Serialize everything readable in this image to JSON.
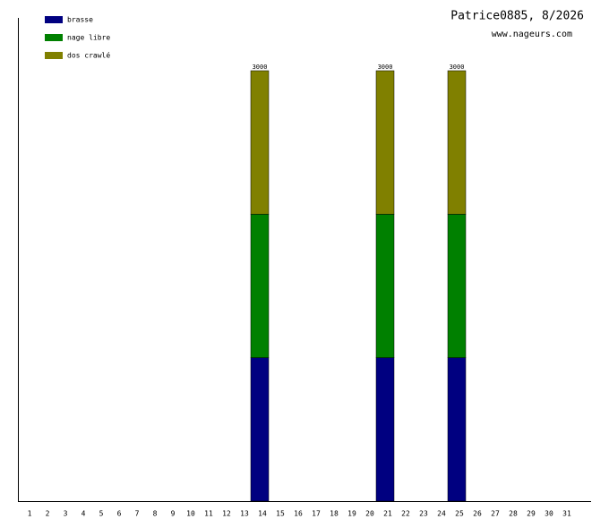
{
  "chart_data": {
    "type": "stacked-bar",
    "title": "Patrice0885, 8/2026",
    "subtitle": "www.nageurs.com",
    "categories": [
      "1",
      "2",
      "3",
      "4",
      "5",
      "6",
      "7",
      "8",
      "9",
      "10",
      "11",
      "12",
      "13",
      "14",
      "15",
      "16",
      "17",
      "18",
      "19",
      "20",
      "21",
      "22",
      "23",
      "24",
      "25",
      "26",
      "27",
      "28",
      "29",
      "30",
      "31"
    ],
    "series": [
      {
        "name": "brasse",
        "color": "#000080",
        "values": [
          null,
          null,
          null,
          null,
          null,
          null,
          null,
          null,
          null,
          null,
          null,
          null,
          null,
          1000,
          null,
          null,
          null,
          null,
          null,
          null,
          1000,
          null,
          null,
          null,
          1000,
          null,
          null,
          null,
          null,
          null,
          null
        ]
      },
      {
        "name": "nage libre",
        "color": "#008000",
        "values": [
          null,
          null,
          null,
          null,
          null,
          null,
          null,
          null,
          null,
          null,
          null,
          null,
          null,
          1000,
          null,
          null,
          null,
          null,
          null,
          null,
          1000,
          null,
          null,
          null,
          1000,
          null,
          null,
          null,
          null,
          null,
          null
        ]
      },
      {
        "name": "dos crawlé",
        "color": "#808000",
        "values": [
          null,
          null,
          null,
          null,
          null,
          null,
          null,
          null,
          null,
          null,
          null,
          null,
          null,
          1000,
          null,
          null,
          null,
          null,
          null,
          null,
          1000,
          null,
          null,
          null,
          1000,
          null,
          null,
          null,
          null,
          null,
          null
        ]
      }
    ],
    "totals": [
      null,
      null,
      null,
      null,
      null,
      null,
      null,
      null,
      null,
      null,
      null,
      null,
      null,
      3000,
      null,
      null,
      null,
      null,
      null,
      null,
      3000,
      null,
      null,
      null,
      3000,
      null,
      null,
      null,
      null,
      null,
      null
    ],
    "ylim": [
      0,
      3000
    ]
  }
}
